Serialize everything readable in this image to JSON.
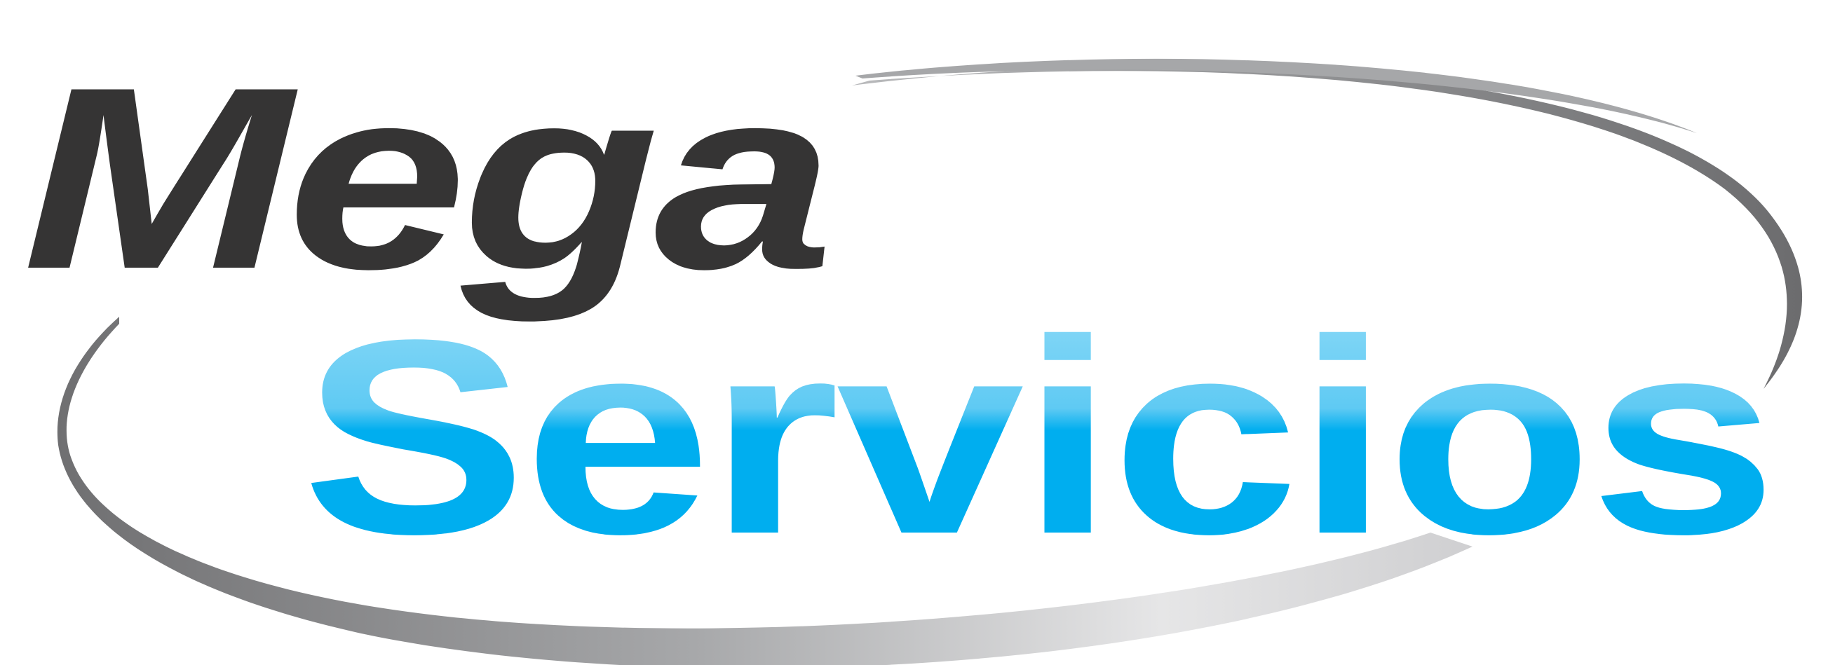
{
  "logo": {
    "line1": "Mega",
    "line2": "Servicios"
  },
  "colors": {
    "mega_fill": "#353434",
    "servicios_top": "#99def8",
    "servicios_mid": "#5fcaf3",
    "servicios_bottom": "#00aeef",
    "swoosh_dark": "#6f6f71",
    "swoosh_light": "#d9d9db",
    "background": "#ffffff"
  }
}
